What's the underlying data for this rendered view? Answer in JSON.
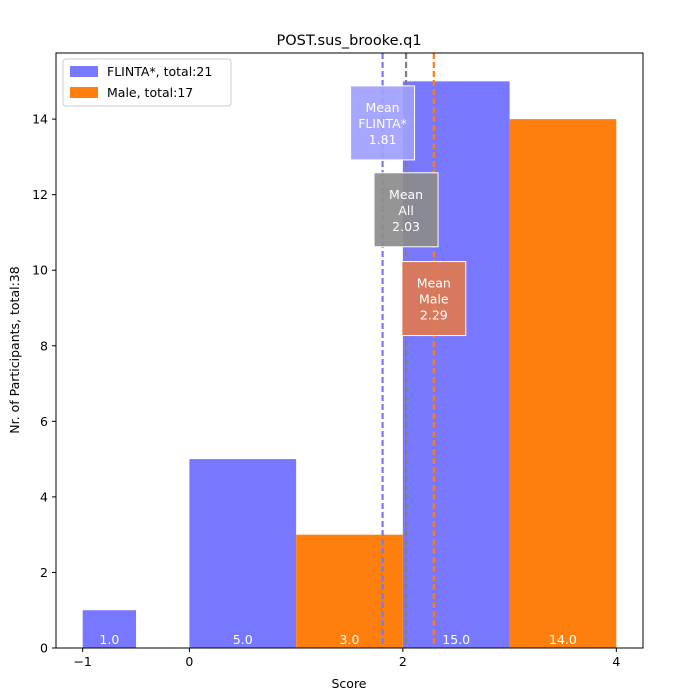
{
  "chart_data": {
    "type": "bar",
    "title": "POST.sus_brooke.q1",
    "xlabel": "Score",
    "ylabel": "Nr. of Participants, total:38",
    "xlim": [
      -1.25,
      4.25
    ],
    "ylim": [
      0,
      15.75
    ],
    "xticks": [
      -1,
      0,
      2,
      4
    ],
    "yticks": [
      0,
      2,
      4,
      6,
      8,
      10,
      12,
      14
    ],
    "legend_position": "top-left",
    "series": [
      {
        "name": "FLINTA*, total:21",
        "color": "#7777ff",
        "bars": [
          {
            "x0": -1,
            "x1": -0.5,
            "value": 1,
            "label": "1.0"
          },
          {
            "x0": 0,
            "x1": 1,
            "value": 5,
            "label": "5.0"
          },
          {
            "x0": 2,
            "x1": 3,
            "value": 15,
            "label": "15.0"
          }
        ]
      },
      {
        "name": "Male, total:17",
        "color": "#ff7f0e",
        "bars": [
          {
            "x0": 1,
            "x1": 2,
            "value": 3,
            "label": "3.0"
          },
          {
            "x0": 3,
            "x1": 4,
            "value": 14,
            "label": "14.0"
          }
        ]
      }
    ],
    "mean_lines": [
      {
        "key": "flinta",
        "lines": [
          "Mean",
          "FLINTA*",
          "1.81"
        ],
        "value": 1.81,
        "color": "#7777ff",
        "box_color": "#a0a0ff",
        "box_y": 13.9
      },
      {
        "key": "all",
        "lines": [
          "Mean",
          "All",
          "2.03"
        ],
        "value": 2.03,
        "color": "#808080",
        "box_color": "#8c8c8c",
        "box_y": 11.6
      },
      {
        "key": "male",
        "lines": [
          "Mean",
          "Male",
          "2.29"
        ],
        "value": 2.29,
        "color": "#ff7f0e",
        "box_color": "#e07a50",
        "box_y": 9.25
      }
    ]
  }
}
